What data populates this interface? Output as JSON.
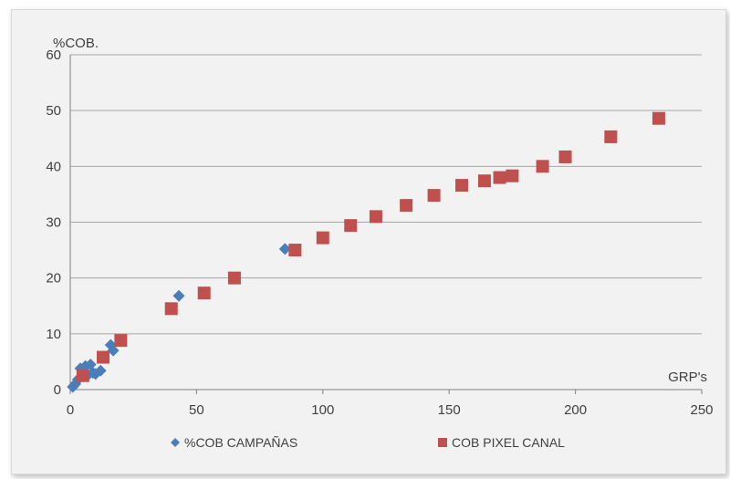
{
  "chart_data": {
    "type": "scatter",
    "title": "",
    "xlabel": "GRP's",
    "ylabel": "%COB.",
    "xlim": [
      0,
      250
    ],
    "ylim": [
      0,
      60
    ],
    "x_ticks": [
      "0",
      "50",
      "100",
      "150",
      "200",
      "250"
    ],
    "y_ticks": [
      "0",
      "10",
      "20",
      "30",
      "40",
      "50",
      "60"
    ],
    "grid": "horizontal",
    "legend_position": "bottom",
    "series": [
      {
        "name": "%COB CAMPAÑAS",
        "marker": "diamond",
        "color": "#4a7ebb",
        "points": [
          {
            "x": 1,
            "y": 0.5
          },
          {
            "x": 2,
            "y": 1
          },
          {
            "x": 3,
            "y": 1.8
          },
          {
            "x": 4,
            "y": 3.8
          },
          {
            "x": 5,
            "y": 3.2
          },
          {
            "x": 6,
            "y": 4.2
          },
          {
            "x": 7,
            "y": 2.6
          },
          {
            "x": 8,
            "y": 4.5
          },
          {
            "x": 9,
            "y": 3.0
          },
          {
            "x": 10,
            "y": 2.8
          },
          {
            "x": 12,
            "y": 3.4
          },
          {
            "x": 16,
            "y": 8
          },
          {
            "x": 17,
            "y": 7
          },
          {
            "x": 43,
            "y": 16.8
          },
          {
            "x": 85,
            "y": 25.2
          }
        ]
      },
      {
        "name": "COB PIXEL CANAL",
        "marker": "square",
        "color": "#c0504d",
        "points": [
          {
            "x": 5,
            "y": 2.5
          },
          {
            "x": 13,
            "y": 5.8
          },
          {
            "x": 20,
            "y": 8.8
          },
          {
            "x": 40,
            "y": 14.5
          },
          {
            "x": 53,
            "y": 17.3
          },
          {
            "x": 65,
            "y": 20
          },
          {
            "x": 89,
            "y": 25
          },
          {
            "x": 100,
            "y": 27.2
          },
          {
            "x": 111,
            "y": 29.4
          },
          {
            "x": 121,
            "y": 31
          },
          {
            "x": 133,
            "y": 33
          },
          {
            "x": 144,
            "y": 34.8
          },
          {
            "x": 155,
            "y": 36.6
          },
          {
            "x": 164,
            "y": 37.4
          },
          {
            "x": 170,
            "y": 38
          },
          {
            "x": 175,
            "y": 38.3
          },
          {
            "x": 187,
            "y": 40
          },
          {
            "x": 196,
            "y": 41.7
          },
          {
            "x": 214,
            "y": 45.3
          },
          {
            "x": 233,
            "y": 48.6
          }
        ]
      }
    ]
  }
}
